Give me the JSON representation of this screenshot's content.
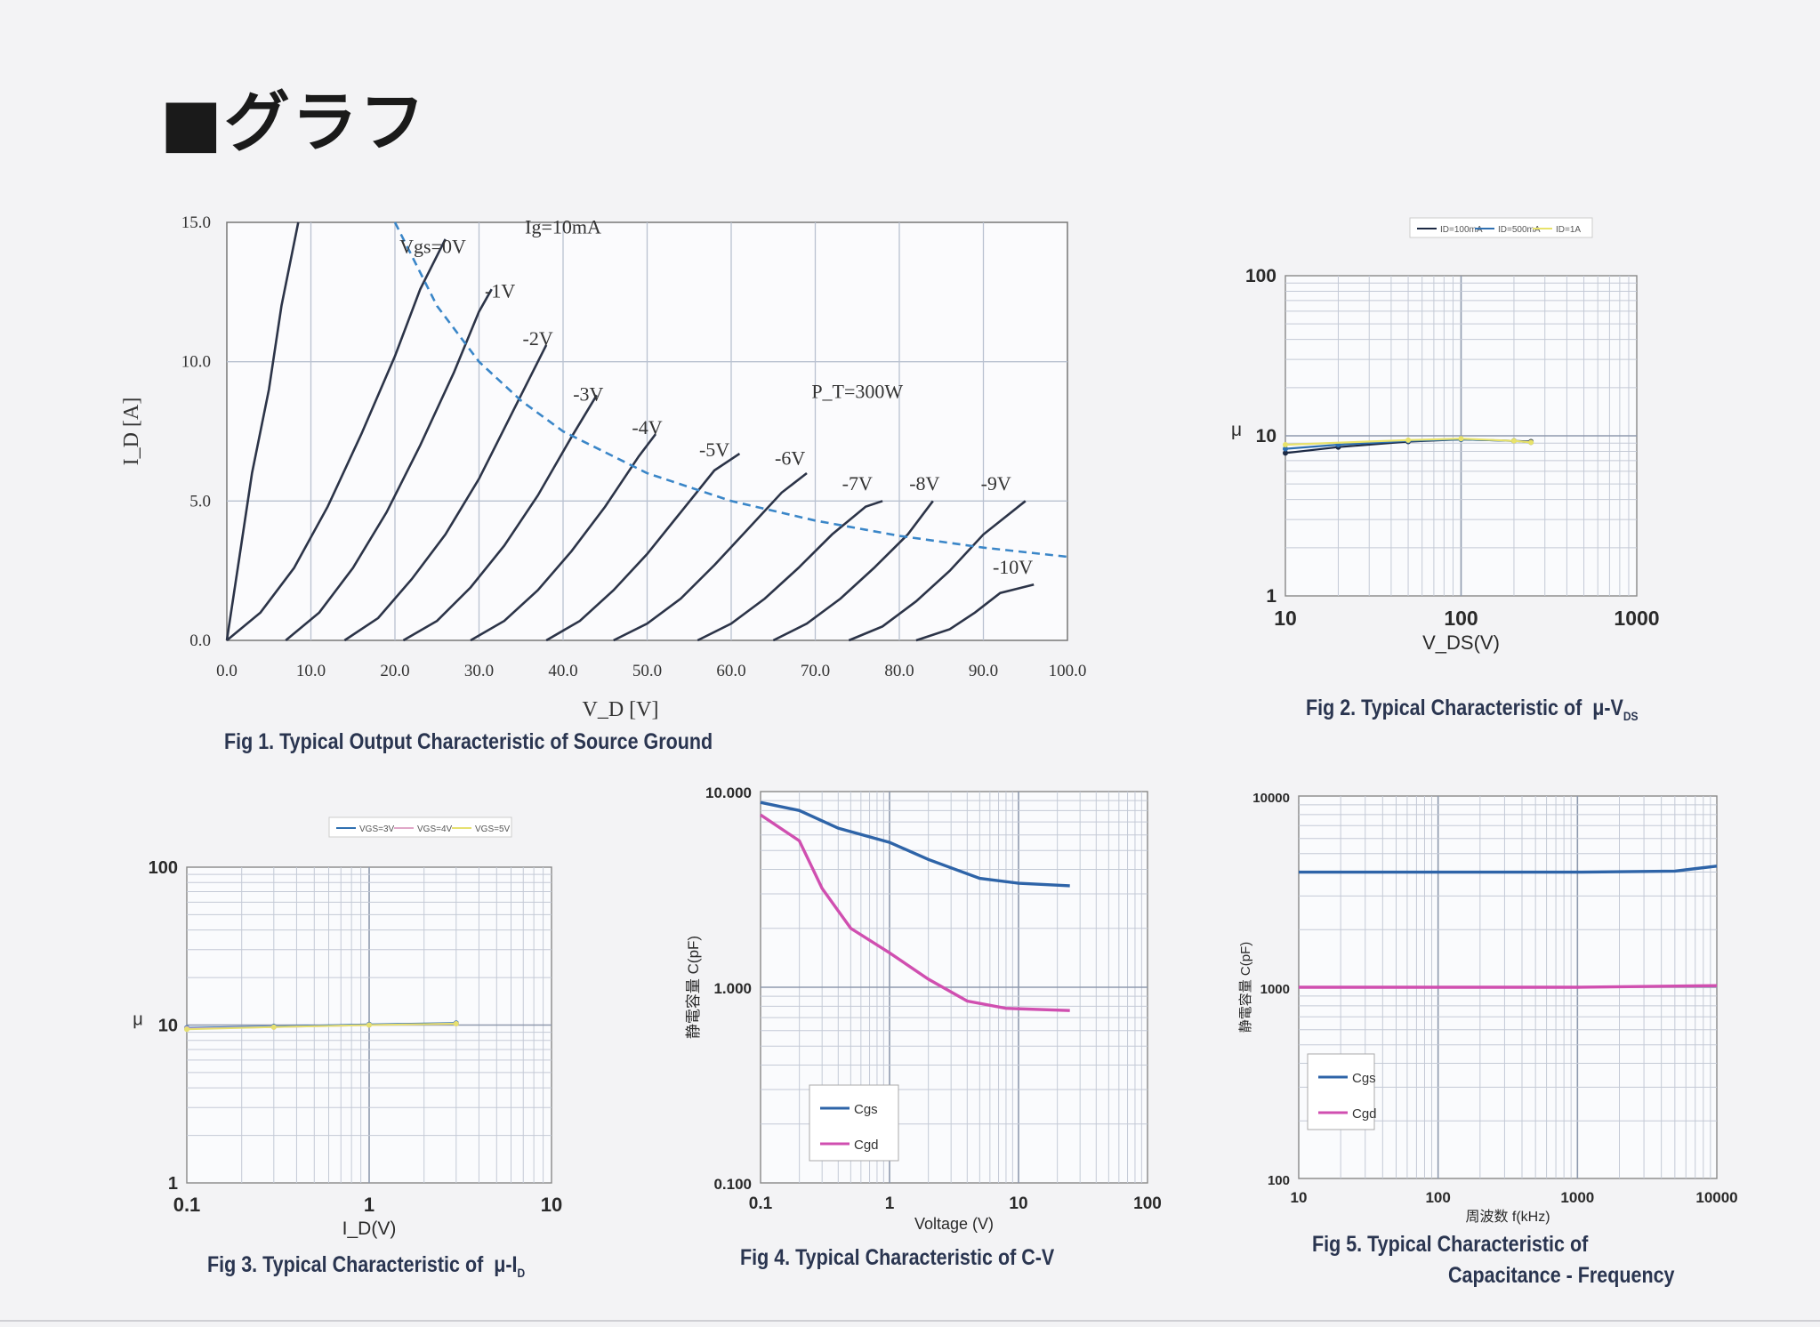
{
  "page": {
    "title": "■グラフ"
  },
  "chart_data": [
    {
      "id": "fig1",
      "type": "line",
      "caption": "Fig 1. Typical Output Characteristic of Source Ground",
      "xlabel": "V_D [V]",
      "ylabel": "I_D [A]",
      "xlim": [
        0,
        100
      ],
      "ylim": [
        0,
        15
      ],
      "x_ticks": [
        "0.0",
        "10.0",
        "20.0",
        "30.0",
        "40.0",
        "50.0",
        "60.0",
        "70.0",
        "80.0",
        "90.0",
        "100.0"
      ],
      "y_ticks": [
        "0.0",
        "5.0",
        "10.0",
        "15.0"
      ],
      "grid": true,
      "series": [
        {
          "name": "Ig=10mA",
          "values": [
            [
              0,
              0
            ],
            [
              1.5,
              3
            ],
            [
              3,
              6
            ],
            [
              5,
              9
            ],
            [
              6.5,
              12
            ],
            [
              8.5,
              15
            ]
          ]
        },
        {
          "name": "Vgs=0V",
          "values": [
            [
              0,
              0
            ],
            [
              4,
              1
            ],
            [
              8,
              2.6
            ],
            [
              12,
              4.8
            ],
            [
              16,
              7.4
            ],
            [
              20,
              10.2
            ],
            [
              23,
              12.6
            ],
            [
              26,
              14.4
            ]
          ]
        },
        {
          "name": "-1V",
          "values": [
            [
              7,
              0
            ],
            [
              11,
              1
            ],
            [
              15,
              2.6
            ],
            [
              19,
              4.6
            ],
            [
              23,
              7
            ],
            [
              27,
              9.6
            ],
            [
              30,
              11.8
            ],
            [
              31.5,
              12.6
            ]
          ]
        },
        {
          "name": "-2V",
          "values": [
            [
              14,
              0
            ],
            [
              18,
              0.8
            ],
            [
              22,
              2.2
            ],
            [
              26,
              3.8
            ],
            [
              30,
              5.8
            ],
            [
              34,
              8.2
            ],
            [
              38,
              10.6
            ]
          ]
        },
        {
          "name": "-3V",
          "values": [
            [
              21,
              0
            ],
            [
              25,
              0.7
            ],
            [
              29,
              1.9
            ],
            [
              33,
              3.4
            ],
            [
              37,
              5.2
            ],
            [
              41,
              7.3
            ],
            [
              44,
              8.8
            ]
          ]
        },
        {
          "name": "-4V",
          "values": [
            [
              29,
              0
            ],
            [
              33,
              0.7
            ],
            [
              37,
              1.8
            ],
            [
              41,
              3.2
            ],
            [
              45,
              4.8
            ],
            [
              49,
              6.6
            ],
            [
              51,
              7.4
            ]
          ]
        },
        {
          "name": "-5V",
          "values": [
            [
              38,
              0
            ],
            [
              42,
              0.7
            ],
            [
              46,
              1.8
            ],
            [
              50,
              3.1
            ],
            [
              54,
              4.6
            ],
            [
              58,
              6.1
            ],
            [
              61,
              6.7
            ]
          ]
        },
        {
          "name": "-6V",
          "values": [
            [
              46,
              0
            ],
            [
              50,
              0.6
            ],
            [
              54,
              1.5
            ],
            [
              58,
              2.7
            ],
            [
              62,
              4
            ],
            [
              66,
              5.3
            ],
            [
              69,
              6
            ]
          ]
        },
        {
          "name": "-7V",
          "values": [
            [
              56,
              0
            ],
            [
              60,
              0.6
            ],
            [
              64,
              1.5
            ],
            [
              68,
              2.6
            ],
            [
              72,
              3.8
            ],
            [
              76,
              4.8
            ],
            [
              78,
              5
            ]
          ]
        },
        {
          "name": "-8V",
          "values": [
            [
              65,
              0
            ],
            [
              69,
              0.6
            ],
            [
              73,
              1.5
            ],
            [
              77,
              2.6
            ],
            [
              81,
              3.8
            ],
            [
              84,
              5
            ]
          ]
        },
        {
          "name": "-9V",
          "values": [
            [
              74,
              0
            ],
            [
              78,
              0.5
            ],
            [
              82,
              1.4
            ],
            [
              86,
              2.5
            ],
            [
              90,
              3.8
            ],
            [
              95,
              5
            ]
          ]
        },
        {
          "name": "-10V",
          "values": [
            [
              82,
              0
            ],
            [
              86,
              0.4
            ],
            [
              89,
              1
            ],
            [
              92,
              1.7
            ],
            [
              96,
              2
            ]
          ]
        }
      ],
      "power_curve": {
        "name": "P_T=300W",
        "values": [
          [
            20,
            15
          ],
          [
            25,
            12
          ],
          [
            30,
            10
          ],
          [
            35,
            8.6
          ],
          [
            40,
            7.5
          ],
          [
            50,
            6
          ],
          [
            60,
            5
          ],
          [
            70,
            4.3
          ],
          [
            80,
            3.75
          ],
          [
            90,
            3.33
          ],
          [
            100,
            3
          ]
        ]
      },
      "annotations": [
        "Ig=10mA",
        "Vgs=0V",
        "-1V",
        "-2V",
        "-3V",
        "-4V",
        "-5V",
        "-6V",
        "-7V",
        "-8V",
        "-9V",
        "-10V",
        "P_T=300W"
      ]
    },
    {
      "id": "fig2",
      "type": "line",
      "caption": "Fig 2. Typical Characteristic of μ-V_DS",
      "xlabel": "V_DS(V)",
      "ylabel": "μ",
      "x_scale": "log",
      "y_scale": "log",
      "xlim": [
        10,
        1000
      ],
      "ylim": [
        1,
        100
      ],
      "x_ticks": [
        "10",
        "100",
        "1000"
      ],
      "y_ticks": [
        "1",
        "10",
        "100"
      ],
      "legend": [
        "ID=100mA",
        "ID=500mA",
        "ID=1A"
      ],
      "legend_position": "top-right",
      "series": [
        {
          "name": "ID=100mA",
          "values": [
            [
              10,
              7.8
            ],
            [
              20,
              8.5
            ],
            [
              50,
              9.2
            ],
            [
              100,
              9.5
            ],
            [
              200,
              9.3
            ],
            [
              250,
              9.2
            ]
          ]
        },
        {
          "name": "ID=500mA",
          "values": [
            [
              10,
              8.3
            ],
            [
              20,
              8.8
            ],
            [
              50,
              9.3
            ],
            [
              100,
              9.5
            ],
            [
              200,
              9.3
            ],
            [
              250,
              9.1
            ]
          ]
        },
        {
          "name": "ID=1A",
          "values": [
            [
              10,
              8.8
            ],
            [
              50,
              9.4
            ],
            [
              100,
              9.6
            ],
            [
              200,
              9.3
            ],
            [
              250,
              9.1
            ]
          ]
        }
      ]
    },
    {
      "id": "fig3",
      "type": "line",
      "caption": "Fig 3. Typical Characteristic of μ-I_D",
      "xlabel": "I_D(V)",
      "ylabel": "μ",
      "x_scale": "log",
      "y_scale": "log",
      "xlim": [
        0.1,
        10
      ],
      "ylim": [
        1,
        100
      ],
      "x_ticks": [
        "0.1",
        "1",
        "10"
      ],
      "y_ticks": [
        "1",
        "10",
        "100"
      ],
      "legend": [
        "VGS=3V",
        "VGS=4V",
        "VGS=5V"
      ],
      "legend_position": "top-center",
      "series": [
        {
          "name": "VGS=3V",
          "values": [
            [
              0.1,
              9.6
            ],
            [
              0.3,
              9.8
            ],
            [
              1,
              10.1
            ],
            [
              3,
              10.3
            ]
          ]
        },
        {
          "name": "VGS=4V",
          "values": [
            [
              0.1,
              9.5
            ],
            [
              0.3,
              9.7
            ],
            [
              1,
              10
            ],
            [
              3,
              10.2
            ]
          ]
        },
        {
          "name": "VGS=5V",
          "values": [
            [
              0.1,
              9.4
            ],
            [
              0.3,
              9.7
            ],
            [
              1,
              10
            ],
            [
              3,
              10.2
            ]
          ]
        }
      ]
    },
    {
      "id": "fig4",
      "type": "line",
      "caption": "Fig 4. Typical Characteristic of C-V",
      "xlabel": "Voltage (V)",
      "ylabel": "静電容量 C(pF)",
      "x_scale": "log",
      "y_scale": "log",
      "xlim": [
        0.1,
        100
      ],
      "ylim": [
        100,
        10000
      ],
      "x_ticks": [
        "0.1",
        "1",
        "10",
        "100"
      ],
      "y_ticks": [
        "0.100",
        "1.000",
        "10.000"
      ],
      "legend": [
        "Cgs",
        "Cgd"
      ],
      "legend_position": "bottom-left",
      "series": [
        {
          "name": "Cgs",
          "values": [
            [
              0.1,
              8800
            ],
            [
              0.2,
              8000
            ],
            [
              0.4,
              6500
            ],
            [
              1,
              5500
            ],
            [
              2,
              4500
            ],
            [
              5,
              3600
            ],
            [
              10,
              3400
            ],
            [
              25,
              3300
            ]
          ]
        },
        {
          "name": "Cgd",
          "values": [
            [
              0.1,
              7600
            ],
            [
              0.2,
              5600
            ],
            [
              0.3,
              3200
            ],
            [
              0.5,
              2000
            ],
            [
              1,
              1500
            ],
            [
              2,
              1100
            ],
            [
              4,
              850
            ],
            [
              8,
              780
            ],
            [
              25,
              760
            ]
          ]
        }
      ]
    },
    {
      "id": "fig5",
      "type": "line",
      "caption": "Fig 5. Typical Characteristic of Capacitance - Frequency",
      "xlabel": "周波数 f(kHz)",
      "ylabel": "静電容量 C(pF)",
      "x_scale": "log",
      "y_scale": "log",
      "xlim": [
        10,
        10000
      ],
      "ylim": [
        100,
        10000
      ],
      "x_ticks": [
        "10",
        "100",
        "1000",
        "10000"
      ],
      "y_ticks": [
        "100",
        "1000",
        "10000"
      ],
      "legend": [
        "Cgs",
        "Cgd"
      ],
      "legend_position": "bottom-left",
      "series": [
        {
          "name": "Cgs",
          "values": [
            [
              10,
              4000
            ],
            [
              100,
              4000
            ],
            [
              1000,
              4000
            ],
            [
              5000,
              4050
            ],
            [
              10000,
              4300
            ]
          ]
        },
        {
          "name": "Cgd",
          "values": [
            [
              10,
              1000
            ],
            [
              100,
              1000
            ],
            [
              1000,
              1000
            ],
            [
              10000,
              1020
            ]
          ]
        }
      ]
    }
  ]
}
